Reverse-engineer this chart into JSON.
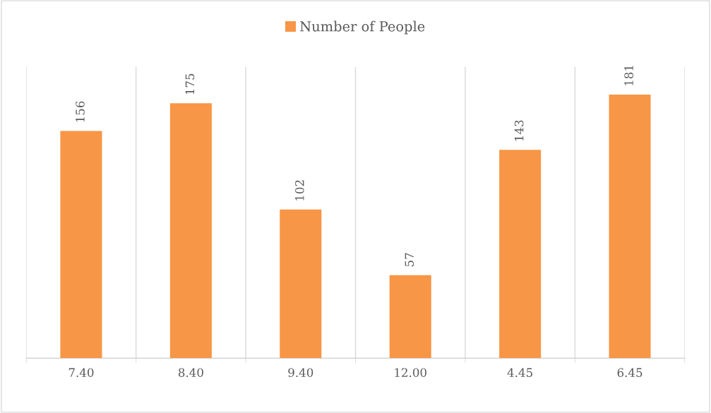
{
  "chart_data": {
    "type": "bar",
    "categories": [
      "7.40",
      "8.40",
      "9.40",
      "12.00",
      "4.45",
      "6.45"
    ],
    "series": [
      {
        "name": "Number of People",
        "color": "#f79646",
        "values": [
          156,
          175,
          102,
          57,
          143,
          181
        ]
      }
    ],
    "ylim": [
      0,
      200
    ],
    "tick_labels": "x",
    "data_labels": true,
    "grid": "x",
    "legend": "top"
  }
}
